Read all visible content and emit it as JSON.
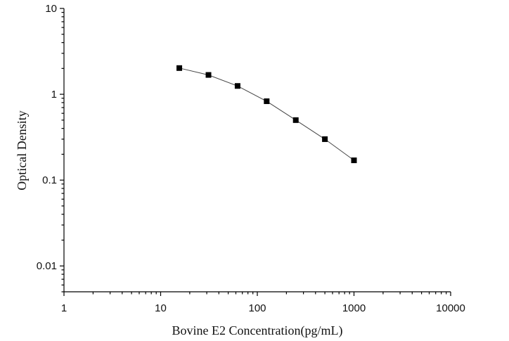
{
  "chart_data": {
    "type": "scatter",
    "title": "",
    "xlabel": "Bovine E2 Concentration(pg/mL)",
    "ylabel": "Optical Density",
    "xscale": "log",
    "yscale": "log",
    "xlim": [
      1,
      10000
    ],
    "ylim": [
      0.005,
      10
    ],
    "xticks": [
      {
        "value": 1,
        "label": "1"
      },
      {
        "value": 10,
        "label": "10"
      },
      {
        "value": 100,
        "label": "100"
      },
      {
        "value": 1000,
        "label": "1000"
      },
      {
        "value": 10000,
        "label": "10000"
      }
    ],
    "yticks": [
      {
        "value": 10,
        "label": "10"
      },
      {
        "value": 1,
        "label": "1"
      },
      {
        "value": 0.1,
        "label": "0.1"
      },
      {
        "value": 0.01,
        "label": "0.01"
      }
    ],
    "grid": false,
    "legend": false,
    "marker": "square",
    "marker_color": "#000000",
    "line_color": "#444444",
    "series": [
      {
        "x": [
          15.6,
          31.25,
          62.5,
          125,
          250,
          500,
          1000
        ],
        "y": [
          2.02,
          1.68,
          1.25,
          0.83,
          0.5,
          0.3,
          0.17
        ]
      }
    ]
  }
}
